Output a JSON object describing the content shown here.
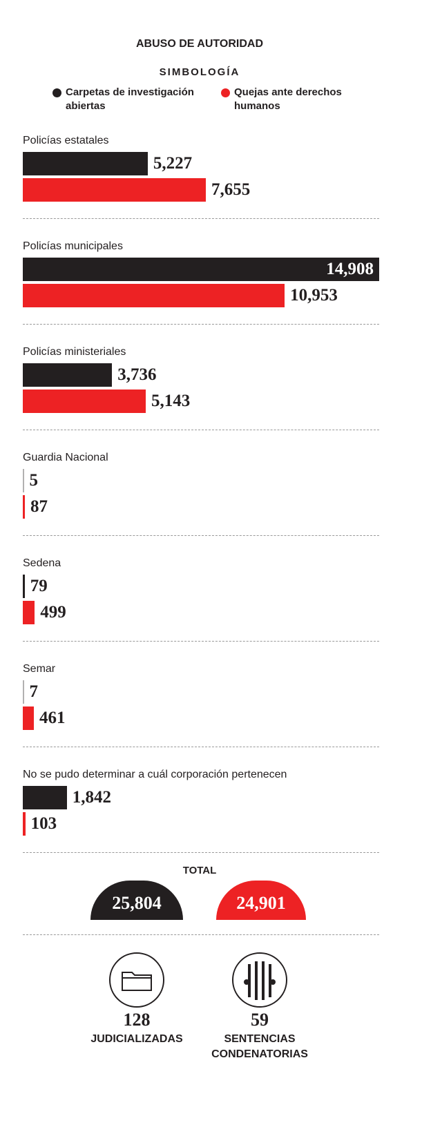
{
  "chart_data": {
    "type": "bar",
    "orientation": "horizontal",
    "title": "ABUSO DE AUTORIDAD",
    "legend_title": "SIMBOLOGÍA",
    "categories": [
      "Policías estatales",
      "Policías municipales",
      "Policías ministeriales",
      "Guardia Nacional",
      "Sedena",
      "Semar",
      "No se pudo determinar a cuál corporación pertenecen"
    ],
    "series": [
      {
        "name": "Carpetas de investigación abiertas",
        "color": "#231f20",
        "values": [
          5227,
          14908,
          3736,
          5,
          79,
          7,
          1842
        ],
        "value_labels": [
          "5,227",
          "14,908",
          "3,736",
          "5",
          "79",
          "7",
          "1,842"
        ]
      },
      {
        "name": "Quejas ante derechos humanos",
        "color": "#ed2224",
        "values": [
          7655,
          10953,
          5143,
          87,
          499,
          461,
          103
        ],
        "value_labels": [
          "7,655",
          "10,953",
          "5,143",
          "87",
          "499",
          "461",
          "103"
        ]
      }
    ],
    "xlim": [
      0,
      14908
    ]
  },
  "totals": {
    "title": "TOTAL",
    "items": [
      {
        "value": 25804,
        "label": "25,804",
        "color": "#231f20"
      },
      {
        "value": 24901,
        "label": "24,901",
        "color": "#ed2224"
      }
    ]
  },
  "outcomes": [
    {
      "value": 128,
      "label": "JUDICIALIZADAS"
    },
    {
      "value": 59,
      "label": "SENTENCIAS CONDENATORIAS"
    }
  ]
}
